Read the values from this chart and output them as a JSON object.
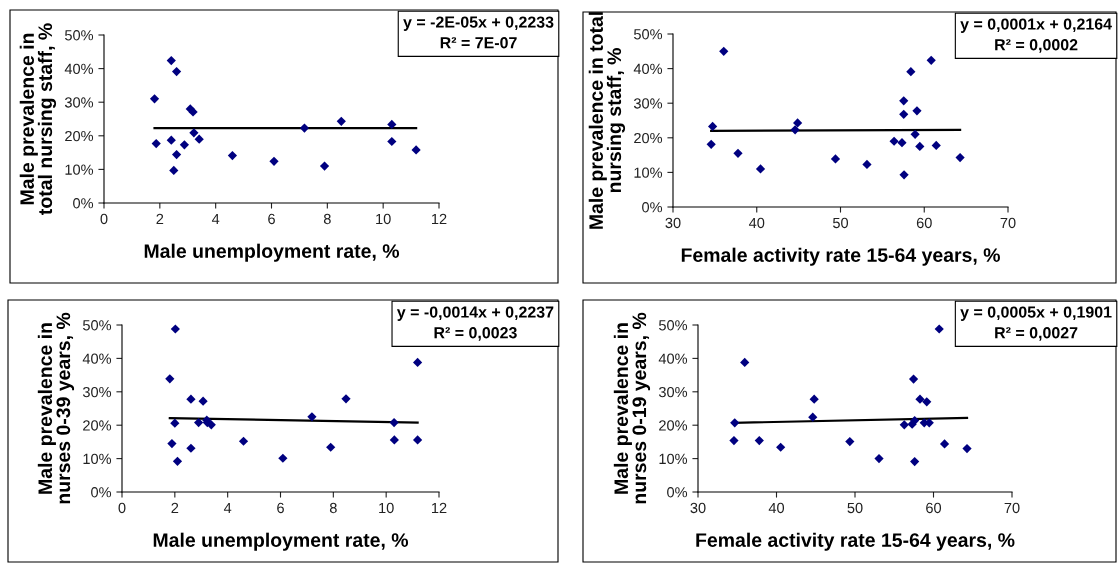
{
  "chart_data": [
    {
      "type": "scatter",
      "xlabel": "Male unemployment rate, %",
      "ylabel": "Male prevalence in\ntotal nursing staff, %",
      "xlim": [
        0,
        12
      ],
      "xticks": [
        0,
        2,
        4,
        6,
        8,
        10,
        12
      ],
      "ylim": [
        0,
        0.5
      ],
      "yticks": [
        {
          "value": 0,
          "label": "0%"
        },
        {
          "value": 0.1,
          "label": "10%"
        },
        {
          "value": 0.2,
          "label": "20%"
        },
        {
          "value": 0.3,
          "label": "30%"
        },
        {
          "value": 0.4,
          "label": "40%"
        },
        {
          "value": 0.5,
          "label": "50%"
        }
      ],
      "grid": false,
      "annotations": [
        "y = -2E-05x + 0,2233",
        "R² = 7E-07"
      ],
      "series": [
        {
          "marker": "diamond",
          "color": "#000080",
          "x": [
            1.81,
            1.87,
            2.41,
            2.41,
            2.5,
            2.6,
            2.6,
            2.88,
            3.09,
            3.19,
            3.22,
            3.41,
            4.6,
            6.09,
            7.18,
            7.9,
            8.5,
            10.31,
            10.31,
            11.18
          ],
          "values": [
            0.31,
            0.177,
            0.424,
            0.187,
            0.097,
            0.391,
            0.144,
            0.173,
            0.28,
            0.271,
            0.209,
            0.19,
            0.141,
            0.124,
            0.223,
            0.11,
            0.243,
            0.234,
            0.183,
            0.158
          ]
        },
        {
          "type": "line",
          "color": "#000000",
          "x": [
            1.81,
            11.18
          ],
          "values": [
            0.223,
            0.223
          ]
        }
      ]
    },
    {
      "type": "scatter",
      "xlabel": "Female activity rate 15-64 years, %",
      "ylabel": "Male prevalence in total\nnursing staff, %",
      "xlim": [
        30,
        70
      ],
      "xticks": [
        30,
        40,
        50,
        60,
        70
      ],
      "ylim": [
        0,
        0.5
      ],
      "yticks": [
        {
          "value": 0,
          "label": "0%"
        },
        {
          "value": 0.1,
          "label": "10%"
        },
        {
          "value": 0.2,
          "label": "20%"
        },
        {
          "value": 0.3,
          "label": "30%"
        },
        {
          "value": 0.4,
          "label": "40%"
        },
        {
          "value": 0.5,
          "label": "50%"
        }
      ],
      "grid": false,
      "annotations": [
        "y = 0,0001x + 0,2164",
        "R² = 0,0002"
      ],
      "series": [
        {
          "marker": "diamond",
          "color": "#000080",
          "x": [
            34.56,
            34.73,
            36.06,
            37.76,
            40.45,
            44.58,
            44.88,
            49.4,
            53.16,
            56.4,
            57.34,
            57.55,
            57.55,
            57.59,
            58.4,
            58.91,
            59.13,
            59.47,
            61.43,
            60.83,
            64.28
          ],
          "values": [
            0.181,
            0.233,
            0.45,
            0.155,
            0.11,
            0.223,
            0.243,
            0.139,
            0.123,
            0.19,
            0.186,
            0.307,
            0.268,
            0.093,
            0.391,
            0.21,
            0.278,
            0.175,
            0.178,
            0.424,
            0.143
          ]
        },
        {
          "type": "line",
          "color": "#000000",
          "x": [
            34.56,
            64.28
          ],
          "values": [
            0.22,
            0.223
          ]
        }
      ]
    },
    {
      "type": "scatter",
      "xlabel": "Male unemployment rate, %",
      "ylabel": "Male prevalence in\nnurses 0-39 years, %",
      "xlim": [
        0,
        12
      ],
      "xticks": [
        0,
        2,
        4,
        6,
        8,
        10,
        12
      ],
      "ylim": [
        0,
        0.5
      ],
      "yticks": [
        {
          "value": 0,
          "label": "0%"
        },
        {
          "value": 0.1,
          "label": "10%"
        },
        {
          "value": 0.2,
          "label": "20%"
        },
        {
          "value": 0.3,
          "label": "30%"
        },
        {
          "value": 0.4,
          "label": "40%"
        },
        {
          "value": 0.5,
          "label": "50%"
        }
      ],
      "grid": false,
      "annotations": [
        "y = -0,0014x + 0,2237",
        "R² = 0,0023"
      ],
      "series": [
        {
          "marker": "diamond",
          "color": "#000080",
          "x": [
            1.81,
            1.89,
            2.0,
            2.02,
            2.1,
            2.61,
            2.61,
            2.9,
            3.07,
            3.21,
            3.23,
            3.38,
            4.6,
            6.09,
            7.19,
            7.9,
            8.48,
            10.3,
            10.31,
            11.19,
            11.19
          ],
          "values": [
            0.339,
            0.145,
            0.206,
            0.488,
            0.092,
            0.278,
            0.131,
            0.208,
            0.272,
            0.215,
            0.208,
            0.201,
            0.152,
            0.101,
            0.225,
            0.134,
            0.279,
            0.208,
            0.156,
            0.388,
            0.156
          ]
        },
        {
          "type": "line",
          "color": "#000000",
          "x": [
            1.81,
            11.19
          ],
          "values": [
            0.221,
            0.208
          ]
        }
      ]
    },
    {
      "type": "scatter",
      "xlabel": "Female activity rate 15-64 years, %",
      "ylabel": "Male prevalence in\nnurses 0-19 years, %",
      "xlim": [
        30,
        70
      ],
      "xticks": [
        30,
        40,
        50,
        60,
        70
      ],
      "ylim": [
        0,
        0.5
      ],
      "yticks": [
        {
          "value": 0,
          "label": "0%"
        },
        {
          "value": 0.1,
          "label": "10%"
        },
        {
          "value": 0.2,
          "label": "20%"
        },
        {
          "value": 0.3,
          "label": "30%"
        },
        {
          "value": 0.4,
          "label": "40%"
        },
        {
          "value": 0.5,
          "label": "50%"
        }
      ],
      "grid": false,
      "annotations": [
        "y = 0,0005x + 0,1901",
        "R² = 0,0027"
      ],
      "series": [
        {
          "marker": "diamond",
          "color": "#000080",
          "x": [
            34.58,
            34.68,
            35.95,
            37.81,
            40.53,
            44.62,
            44.8,
            49.34,
            53.06,
            56.28,
            57.28,
            57.46,
            57.6,
            57.6,
            58.28,
            58.82,
            59.14,
            59.46,
            60.73,
            61.41,
            64.27
          ],
          "values": [
            0.154,
            0.207,
            0.388,
            0.154,
            0.134,
            0.224,
            0.278,
            0.151,
            0.1,
            0.201,
            0.203,
            0.338,
            0.214,
            0.091,
            0.278,
            0.207,
            0.27,
            0.207,
            0.488,
            0.144,
            0.13
          ]
        },
        {
          "type": "line",
          "color": "#000000",
          "x": [
            34.58,
            64.27
          ],
          "values": [
            0.207,
            0.222
          ]
        }
      ]
    }
  ]
}
